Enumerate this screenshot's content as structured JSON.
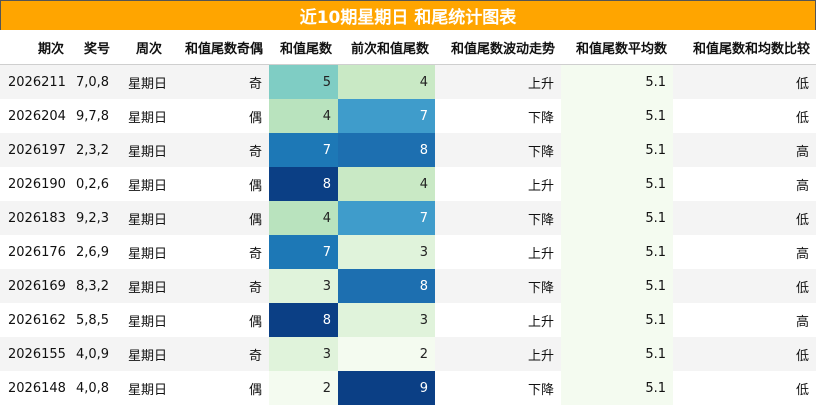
{
  "title": "近10期星期日 和尾统计图表",
  "headers": [
    "期次",
    "奖号",
    "周次",
    "和值尾数奇偶",
    "和值尾数",
    "前次和值尾数",
    "和值尾数波动走势",
    "和值尾数平均数",
    "和值尾数和均数比较"
  ],
  "rows": [
    {
      "period": "2026211",
      "numbers": "7,0,8",
      "weekday": "星期日",
      "parity": "奇",
      "tail": 5,
      "prev_tail": 4,
      "trend": "上升",
      "avg": "5.1",
      "compare": "低"
    },
    {
      "period": "2026204",
      "numbers": "9,7,8",
      "weekday": "星期日",
      "parity": "偶",
      "tail": 4,
      "prev_tail": 7,
      "trend": "下降",
      "avg": "5.1",
      "compare": "低"
    },
    {
      "period": "2026197",
      "numbers": "2,3,2",
      "weekday": "星期日",
      "parity": "奇",
      "tail": 7,
      "prev_tail": 8,
      "trend": "下降",
      "avg": "5.1",
      "compare": "高"
    },
    {
      "period": "2026190",
      "numbers": "0,2,6",
      "weekday": "星期日",
      "parity": "偶",
      "tail": 8,
      "prev_tail": 4,
      "trend": "上升",
      "avg": "5.1",
      "compare": "高"
    },
    {
      "period": "2026183",
      "numbers": "9,2,3",
      "weekday": "星期日",
      "parity": "偶",
      "tail": 4,
      "prev_tail": 7,
      "trend": "下降",
      "avg": "5.1",
      "compare": "低"
    },
    {
      "period": "2026176",
      "numbers": "2,6,9",
      "weekday": "星期日",
      "parity": "奇",
      "tail": 7,
      "prev_tail": 3,
      "trend": "上升",
      "avg": "5.1",
      "compare": "高"
    },
    {
      "period": "2026169",
      "numbers": "8,3,2",
      "weekday": "星期日",
      "parity": "奇",
      "tail": 3,
      "prev_tail": 8,
      "trend": "下降",
      "avg": "5.1",
      "compare": "低"
    },
    {
      "period": "2026162",
      "numbers": "5,8,5",
      "weekday": "星期日",
      "parity": "偶",
      "tail": 8,
      "prev_tail": 3,
      "trend": "上升",
      "avg": "5.1",
      "compare": "高"
    },
    {
      "period": "2026155",
      "numbers": "4,0,9",
      "weekday": "星期日",
      "parity": "奇",
      "tail": 3,
      "prev_tail": 2,
      "trend": "上升",
      "avg": "5.1",
      "compare": "低"
    },
    {
      "period": "2026148",
      "numbers": "4,0,8",
      "weekday": "星期日",
      "parity": "偶",
      "tail": 2,
      "prev_tail": 9,
      "trend": "下降",
      "avg": "5.1",
      "compare": "低"
    }
  ],
  "colors": {
    "title_bg": "#ffa500",
    "title_text": "#ffffff",
    "heat_tail": {
      "2": "#f4fbf0",
      "3": "#e0f3db",
      "4": "#b9e3be",
      "5": "#7fcdc4",
      "7": "#1d78b6",
      "8": "#0b3f85"
    },
    "heat_prev_tail": {
      "2": "#f4fbf0",
      "3": "#e0f3db",
      "4": "#c9e9c5",
      "7": "#3f9ccb",
      "8": "#1d6fb0",
      "9": "#0b3f85"
    }
  }
}
